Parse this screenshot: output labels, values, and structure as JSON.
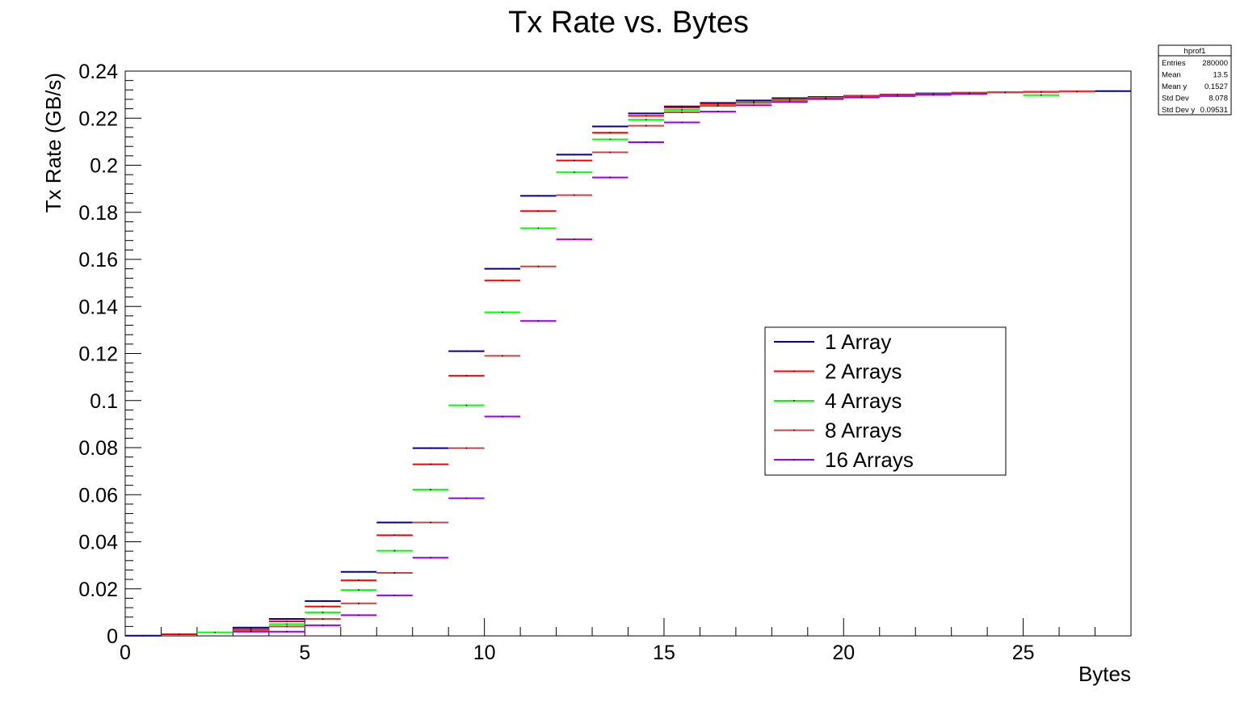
{
  "chart_data": {
    "type": "line",
    "title": "Tx Rate vs. Bytes",
    "xlabel": "Bytes",
    "ylabel": "Tx Rate (GB/s)",
    "xlim": [
      0,
      28
    ],
    "ylim": [
      0,
      0.24
    ],
    "x_ticks": [
      0,
      5,
      10,
      15,
      20,
      25
    ],
    "y_ticks": [
      0,
      0.02,
      0.04,
      0.06,
      0.08,
      0.1,
      0.12,
      0.14,
      0.16,
      0.18,
      0.2,
      0.22,
      0.24
    ],
    "y_tick_labels": [
      "0",
      "0.02",
      "0.04",
      "0.06",
      "0.08",
      "0.1",
      "0.12",
      "0.14",
      "0.16",
      "0.18",
      "0.2",
      "0.22",
      "0.24"
    ],
    "x_tick_labels": [
      "0",
      "5",
      "10",
      "15",
      "20",
      "25"
    ],
    "grid": false,
    "legend_position": "center-right",
    "series": [
      {
        "name": "1 Array",
        "color": "#000099",
        "points": [
          [
            0,
            0.0001
          ],
          [
            3,
            0.0035
          ],
          [
            4,
            0.0072
          ],
          [
            5,
            0.0148
          ],
          [
            6,
            0.0272
          ],
          [
            7,
            0.0482
          ],
          [
            8,
            0.0798
          ],
          [
            9,
            0.121
          ],
          [
            10,
            0.156
          ],
          [
            11,
            0.187
          ],
          [
            12,
            0.2045
          ],
          [
            13,
            0.2165
          ],
          [
            14,
            0.222
          ],
          [
            15,
            0.225
          ],
          [
            16,
            0.2265
          ],
          [
            17,
            0.2275
          ],
          [
            18,
            0.2285
          ],
          [
            19,
            0.229
          ],
          [
            20,
            0.2295
          ],
          [
            21,
            0.23
          ],
          [
            22,
            0.2305
          ],
          [
            23,
            0.2308
          ],
          [
            24,
            0.231
          ],
          [
            25,
            0.2312
          ],
          [
            26,
            0.2314
          ],
          [
            27,
            0.2315
          ]
        ]
      },
      {
        "name": "2 Arrays",
        "color": "#ff0000",
        "points": [
          [
            1,
            0.0007
          ],
          [
            3,
            0.003
          ],
          [
            4,
            0.0062
          ],
          [
            5,
            0.0125
          ],
          [
            6,
            0.0236
          ],
          [
            7,
            0.0428
          ],
          [
            8,
            0.0729
          ],
          [
            9,
            0.1105
          ],
          [
            10,
            0.151
          ],
          [
            11,
            0.1805
          ],
          [
            12,
            0.202
          ],
          [
            13,
            0.2138
          ],
          [
            14,
            0.221
          ],
          [
            15,
            0.2245
          ],
          [
            16,
            0.226
          ],
          [
            17,
            0.227
          ],
          [
            18,
            0.228
          ],
          [
            19,
            0.2288
          ],
          [
            20,
            0.2294
          ],
          [
            21,
            0.2299
          ],
          [
            22,
            0.2303
          ],
          [
            23,
            0.2307
          ],
          [
            24,
            0.231
          ],
          [
            25,
            0.2312
          ],
          [
            26,
            0.2314
          ]
        ]
      },
      {
        "name": "4 Arrays",
        "color": "#00ff00",
        "points": [
          [
            2,
            0.0015
          ],
          [
            3,
            0.0025
          ],
          [
            4,
            0.005
          ],
          [
            5,
            0.01
          ],
          [
            6,
            0.0195
          ],
          [
            7,
            0.0362
          ],
          [
            8,
            0.0622
          ],
          [
            9,
            0.098
          ],
          [
            10,
            0.1375
          ],
          [
            11,
            0.1732
          ],
          [
            12,
            0.197
          ],
          [
            13,
            0.211
          ],
          [
            14,
            0.2193
          ],
          [
            15,
            0.2235
          ],
          [
            16,
            0.2255
          ],
          [
            17,
            0.2268
          ],
          [
            18,
            0.2278
          ],
          [
            19,
            0.2286
          ],
          [
            20,
            0.2292
          ],
          [
            21,
            0.2297
          ],
          [
            22,
            0.2302
          ],
          [
            23,
            0.2306
          ],
          [
            24,
            0.2309
          ],
          [
            25,
            0.2298
          ]
        ]
      },
      {
        "name": "8 Arrays",
        "color": "#cc4444",
        "points": [
          [
            3,
            0.0025
          ],
          [
            4,
            0.004
          ],
          [
            5,
            0.0072
          ],
          [
            6,
            0.0138
          ],
          [
            7,
            0.0268
          ],
          [
            8,
            0.0482
          ],
          [
            9,
            0.0798
          ],
          [
            10,
            0.119
          ],
          [
            11,
            0.157
          ],
          [
            12,
            0.1873
          ],
          [
            13,
            0.2055
          ],
          [
            14,
            0.2168
          ],
          [
            15,
            0.2225
          ],
          [
            16,
            0.2252
          ],
          [
            17,
            0.2265
          ],
          [
            18,
            0.2277
          ],
          [
            19,
            0.2285
          ],
          [
            20,
            0.2292
          ],
          [
            21,
            0.2297
          ],
          [
            22,
            0.2302
          ],
          [
            23,
            0.2306
          ],
          [
            24,
            0.2309
          ],
          [
            25,
            0.2311
          ],
          [
            26,
            0.2313
          ]
        ]
      },
      {
        "name": "16 Arrays",
        "color": "#9900ee",
        "points": [
          [
            3,
            0.0018
          ],
          [
            4,
            0.0018
          ],
          [
            5,
            0.0045
          ],
          [
            6,
            0.0088
          ],
          [
            7,
            0.0172
          ],
          [
            8,
            0.0332
          ],
          [
            9,
            0.0585
          ],
          [
            10,
            0.0932
          ],
          [
            11,
            0.1338
          ],
          [
            12,
            0.1685
          ],
          [
            13,
            0.1948
          ],
          [
            14,
            0.2098
          ],
          [
            15,
            0.2182
          ],
          [
            16,
            0.2228
          ],
          [
            17,
            0.2255
          ],
          [
            18,
            0.2269
          ],
          [
            19,
            0.2281
          ],
          [
            20,
            0.2288
          ],
          [
            21,
            0.2294
          ],
          [
            22,
            0.2299
          ],
          [
            23,
            0.2303
          ]
        ]
      }
    ]
  },
  "stats_box": {
    "title": "hprof1",
    "rows": [
      {
        "label": "Entries",
        "value": "280000"
      },
      {
        "label": "Mean",
        "value": "13.5"
      },
      {
        "label": "Mean y",
        "value": "0.1527"
      },
      {
        "label": "Std Dev",
        "value": "8.078"
      },
      {
        "label": "Std Dev y",
        "value": "0.09531"
      }
    ]
  }
}
